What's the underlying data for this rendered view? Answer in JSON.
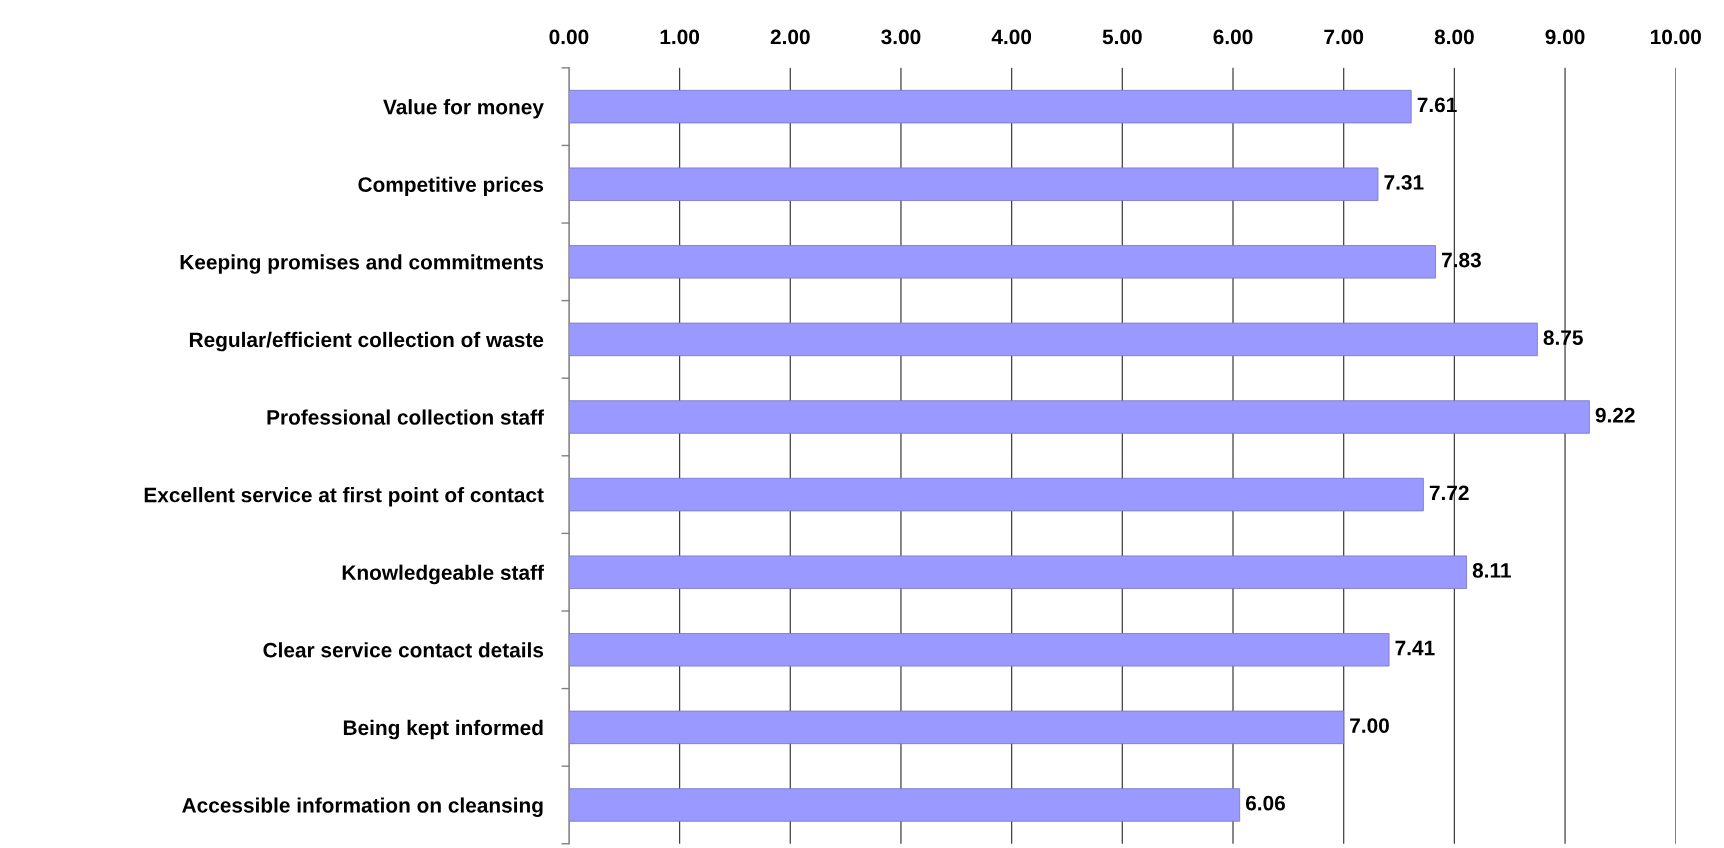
{
  "chart_data": {
    "type": "bar",
    "orientation": "horizontal",
    "categories": [
      "Value for money",
      "Competitive prices",
      "Keeping promises and commitments",
      "Regular/efficient collection of waste",
      "Professional collection staff",
      "Excellent service at first point of contact",
      "Knowledgeable staff",
      "Clear service contact details",
      "Being kept informed",
      "Accessible information on cleansing"
    ],
    "values": [
      7.61,
      7.31,
      7.83,
      8.75,
      9.22,
      7.72,
      8.11,
      7.41,
      7.0,
      6.06
    ],
    "value_labels": [
      "7.61",
      "7.31",
      "7.83",
      "8.75",
      "9.22",
      "7.72",
      "8.11",
      "7.41",
      "7.00",
      "6.06"
    ],
    "color": "#9999ff",
    "xlim": [
      0,
      10
    ],
    "xticks": [
      {
        "value": 0,
        "label": "0.00"
      },
      {
        "value": 1,
        "label": "1.00"
      },
      {
        "value": 2,
        "label": "2.00"
      },
      {
        "value": 3,
        "label": "3.00"
      },
      {
        "value": 4,
        "label": "4.00"
      },
      {
        "value": 5,
        "label": "5.00"
      },
      {
        "value": 6,
        "label": "6.00"
      },
      {
        "value": 7,
        "label": "7.00"
      },
      {
        "value": 8,
        "label": "8.00"
      },
      {
        "value": 9,
        "label": "9.00"
      },
      {
        "value": 10,
        "label": "10.00"
      }
    ],
    "grid": "x"
  }
}
